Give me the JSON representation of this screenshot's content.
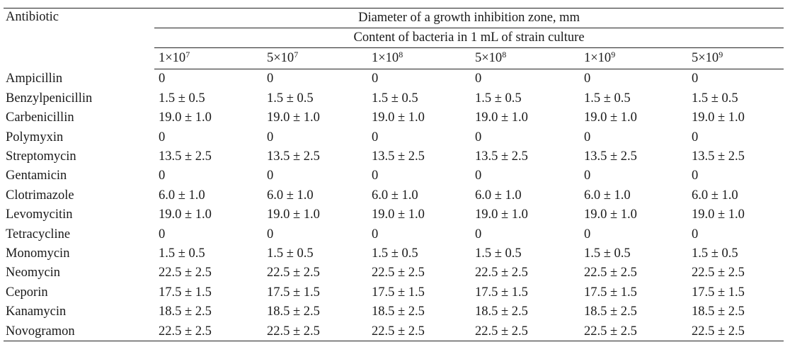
{
  "table": {
    "corner_label": "Antibiotic",
    "group_header": "Diameter of a growth inhibition zone, mm",
    "subgroup_header": "Content of bacteria in 1 mL of strain culture",
    "columns": [
      {
        "mantissa": "1×10",
        "exp": "7"
      },
      {
        "mantissa": "5×10",
        "exp": "7"
      },
      {
        "mantissa": "1×10",
        "exp": "8"
      },
      {
        "mantissa": "5×10",
        "exp": "8"
      },
      {
        "mantissa": "1×10",
        "exp": "9"
      },
      {
        "mantissa": "5×10",
        "exp": "9"
      }
    ],
    "rows": [
      {
        "name": "Ampicillin",
        "values": [
          "0",
          "0",
          "0",
          "0",
          "0",
          "0"
        ]
      },
      {
        "name": "Benzylpenicillin",
        "values": [
          "1.5 ± 0.5",
          "1.5 ± 0.5",
          "1.5 ± 0.5",
          "1.5 ± 0.5",
          "1.5 ± 0.5",
          "1.5 ± 0.5"
        ]
      },
      {
        "name": "Carbenicillin",
        "values": [
          "19.0 ± 1.0",
          "19.0 ± 1.0",
          "19.0 ± 1.0",
          "19.0 ± 1.0",
          "19.0 ± 1.0",
          "19.0 ± 1.0"
        ]
      },
      {
        "name": "Polymyxin",
        "values": [
          "0",
          "0",
          "0",
          "0",
          "0",
          "0"
        ]
      },
      {
        "name": "Streptomycin",
        "values": [
          "13.5 ± 2.5",
          "13.5 ± 2.5",
          "13.5 ± 2.5",
          "13.5 ± 2.5",
          "13.5 ± 2.5",
          "13.5 ± 2.5"
        ]
      },
      {
        "name": "Gentamicin",
        "values": [
          "0",
          "0",
          "0",
          "0",
          "0",
          "0"
        ]
      },
      {
        "name": "Clotrimazole",
        "values": [
          "6.0 ± 1.0",
          "6.0 ± 1.0",
          "6.0 ± 1.0",
          "6.0 ± 1.0",
          "6.0 ± 1.0",
          "6.0 ± 1.0"
        ]
      },
      {
        "name": "Levomycitin",
        "values": [
          "19.0 ± 1.0",
          "19.0 ± 1.0",
          "19.0 ± 1.0",
          "19.0 ± 1.0",
          "19.0 ± 1.0",
          "19.0 ± 1.0"
        ]
      },
      {
        "name": "Tetracycline",
        "values": [
          "0",
          "0",
          "0",
          "0",
          "0",
          "0"
        ]
      },
      {
        "name": "Monomycin",
        "values": [
          "1.5 ± 0.5",
          "1.5 ± 0.5",
          "1.5 ± 0.5",
          "1.5 ± 0.5",
          "1.5 ± 0.5",
          "1.5 ± 0.5"
        ]
      },
      {
        "name": "Neomycin",
        "values": [
          "22.5 ± 2.5",
          "22.5 ± 2.5",
          "22.5 ± 2.5",
          "22.5 ± 2.5",
          "22.5 ± 2.5",
          "22.5 ± 2.5"
        ]
      },
      {
        "name": "Ceporin",
        "values": [
          "17.5 ± 1.5",
          "17.5 ± 1.5",
          "17.5 ± 1.5",
          "17.5 ± 1.5",
          "17.5 ± 1.5",
          "17.5 ± 1.5"
        ]
      },
      {
        "name": "Kanamycin",
        "values": [
          "18.5 ± 2.5",
          "18.5 ± 2.5",
          "18.5 ± 2.5",
          "18.5 ± 2.5",
          "18.5 ± 2.5",
          "18.5 ± 2.5"
        ]
      },
      {
        "name": "Novogramon",
        "values": [
          "22.5 ± 2.5",
          "22.5 ± 2.5",
          "22.5 ± 2.5",
          "22.5 ± 2.5",
          "22.5 ± 2.5",
          "22.5 ± 2.5"
        ]
      }
    ]
  }
}
